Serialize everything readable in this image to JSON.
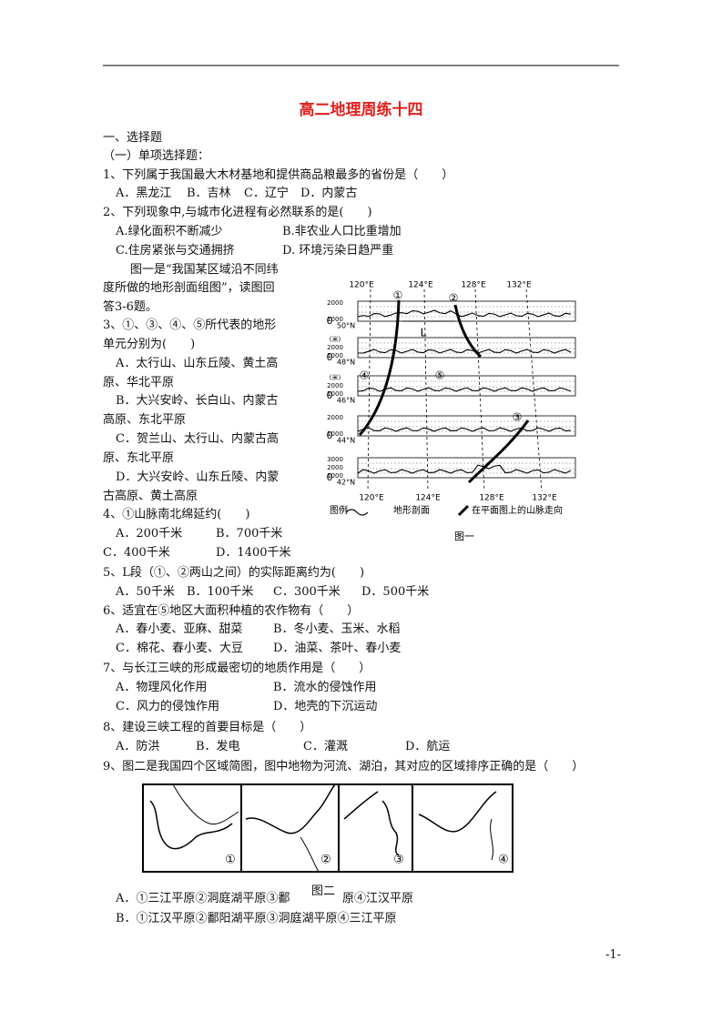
{
  "header": {
    "title": "高二地理周练十四"
  },
  "section": "一、选择题",
  "subsection": "（一）单项选择题：",
  "intro": [
    "图一是“我国某区域沿不同纬",
    "度所做的地形剖面组图”，读图回",
    "答3-6题。"
  ],
  "questions": [
    {
      "stem": [
        "1、下列属于我国最大木材基地和提供商品粮最多的省份是（　　）"
      ],
      "options": [
        [
          "A．黑龙江"
        ],
        [
          "B．吉林"
        ],
        [
          "C．辽宁"
        ],
        [
          "D．内蒙古"
        ]
      ]
    },
    {
      "stem": [
        "2、下列现象中,与城市化进程有必然联系的是(　　)"
      ],
      "options": [
        [
          "A.绿化面积不断减少"
        ],
        [
          "B.非农业人口比重增加"
        ],
        [
          "C.住房紧张与交通拥挤"
        ],
        [
          "D. 环境污染日趋严重"
        ]
      ]
    },
    {
      "stem": [
        "3、①、③、④、⑤所代表的地形",
        "单元分别为(　　)"
      ],
      "options": [
        [
          "A．太行山、山东丘陵、黄土高",
          "原、华北平原"
        ],
        [
          "B．大兴安岭、长白山、内蒙古",
          "高原、东北平原"
        ],
        [
          "C．贺兰山、太行山、内蒙古高",
          "原、东北平原"
        ],
        [
          "D．大兴安岭、山东丘陵、内蒙",
          "古高原、黄土高原"
        ]
      ]
    },
    {
      "stem": [
        "4、①山脉南北绵延约(　　)"
      ],
      "options": [
        [
          "A．200千米"
        ],
        [
          "B．700千米"
        ],
        [
          "C．400千米"
        ],
        [
          "D．1400千米"
        ]
      ]
    },
    {
      "stem": [
        "5、L段（①、②两山之间）的实际距离约为(　　)"
      ],
      "options": [
        [
          "A．50千米"
        ],
        [
          "B．100千米"
        ],
        [
          "C．300千米"
        ],
        [
          "D．500千米"
        ]
      ]
    },
    {
      "stem": [
        "6、适宜在⑤地区大面积种植的农作物有（　　）"
      ],
      "options": [
        [
          "A．春小麦、亚麻、甜菜"
        ],
        [
          "B．冬小麦、玉米、水稻"
        ],
        [
          "C．棉花、春小麦、大豆"
        ],
        [
          "D．油菜、茶叶、春小麦"
        ]
      ]
    },
    {
      "stem": [
        "7、与长江三峡的形成最密切的地质作用是（　　）"
      ],
      "options": [
        [
          "A．物理风化作用"
        ],
        [
          "B．流水的侵蚀作用"
        ],
        [
          "C．风力的侵蚀作用"
        ],
        [
          "D．地壳的下沉运动"
        ]
      ]
    },
    {
      "stem": [
        "8、建设三峡工程的首要目标是（　　）"
      ],
      "options": [
        [
          "A．防洪"
        ],
        [
          "B．发电"
        ],
        [
          "C．灌溉"
        ],
        [
          "D．航运"
        ]
      ]
    },
    {
      "stem": [
        "9、图二是我国四个区域简图，图中地物为河流、湖泊，其对应的区域排序正确的是（　　）"
      ],
      "options": [
        [
          "A．①三江平原②洞庭湖平原③鄱",
          "原④江汉平原"
        ],
        [
          "B．①江汉平原②鄱阳湖平原③洞庭湖平原④三江平原"
        ]
      ]
    }
  ],
  "figure1": {
    "top_lon": [
      "120°E",
      "124°E",
      "128°E",
      "132°E"
    ],
    "bottom_lon": [
      "120°E",
      "124°E",
      "128°E",
      "132°E"
    ],
    "panels": [
      {
        "elev": [
          "2000",
          "1000",
          "0"
        ],
        "lat": "50°N"
      },
      {
        "elev": [
          "(米)",
          "2000",
          "1000",
          "0"
        ],
        "lat": "48°N"
      },
      {
        "elev": [
          "(米)",
          "2000",
          "1000",
          "0"
        ],
        "lat": "46°N"
      },
      {
        "elev": [
          "2000",
          "1000",
          "0"
        ],
        "lat": "44°N"
      },
      {
        "elev": [
          "3000",
          "2000",
          "1000",
          "0"
        ],
        "lat": "42°N"
      }
    ],
    "marks": [
      "①",
      "②",
      "③",
      "④",
      "⑤",
      "L"
    ],
    "legend": {
      "title": "图例",
      "items": [
        "地形剖面",
        "在平面图上的山脉走向"
      ]
    },
    "caption": "图一"
  },
  "figure2": {
    "labels": [
      "①",
      "②",
      "③",
      "④"
    ],
    "caption": "图二"
  },
  "footer": {
    "page": "-1-"
  }
}
